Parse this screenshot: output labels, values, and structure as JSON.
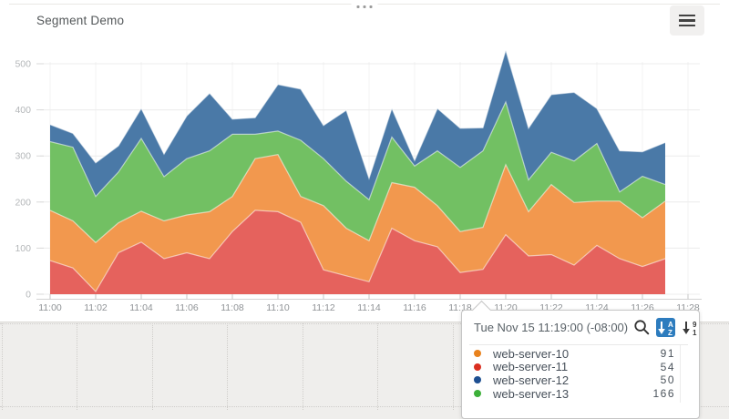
{
  "widget": {
    "title": "Segment Demo"
  },
  "chart_data": {
    "type": "area",
    "stacked": true,
    "title": "Segment Demo",
    "x_start": "11:00",
    "x_step_minutes": 1,
    "x_tick_labels": [
      "11:00",
      "11:02",
      "11:04",
      "11:06",
      "11:08",
      "11:10",
      "11:12",
      "11:14",
      "11:16",
      "11:18",
      "11:20",
      "11:22",
      "11:24",
      "11:26",
      "11:28"
    ],
    "y_ticks": [
      0,
      100,
      200,
      300,
      400,
      500
    ],
    "ylim": [
      0,
      550
    ],
    "grid": true,
    "legend_position": "tooltip",
    "series": [
      {
        "name": "web-server-11",
        "color": "#e5625d",
        "values": [
          73,
          57,
          6,
          90,
          113,
          77,
          90,
          77,
          136,
          182,
          179,
          156,
          53,
          40,
          27,
          143,
          116,
          103,
          47,
          54,
          129,
          83,
          86,
          63,
          106,
          77,
          60,
          77
        ]
      },
      {
        "name": "web-server-10",
        "color": "#f2984e",
        "values": [
          109,
          102,
          106,
          65,
          67,
          82,
          82,
          102,
          76,
          112,
          124,
          56,
          139,
          103,
          89,
          99,
          116,
          89,
          89,
          91,
          152,
          96,
          152,
          136,
          96,
          125,
          106,
          125
        ]
      },
      {
        "name": "web-server-13",
        "color": "#72c063",
        "values": [
          149,
          160,
          100,
          110,
          158,
          96,
          122,
          132,
          135,
          53,
          51,
          122,
          102,
          102,
          89,
          99,
          46,
          119,
          139,
          166,
          136,
          69,
          70,
          90,
          125,
          20,
          90,
          36
        ]
      },
      {
        "name": "web-server-12",
        "color": "#4a79a7",
        "values": [
          37,
          30,
          73,
          57,
          65,
          49,
          93,
          125,
          33,
          36,
          101,
          111,
          72,
          154,
          46,
          62,
          12,
          92,
          85,
          50,
          112,
          112,
          125,
          149,
          76,
          89,
          53,
          91
        ]
      }
    ]
  },
  "tooltip": {
    "timestamp": "Tue Nov 15 11:19:00 (-08:00)",
    "icons": [
      "search-icon",
      "sort-alpha-desc-icon",
      "sort-numeric-desc-icon"
    ],
    "active_sort": "alpha",
    "sort_button_color": "#2d7cbe",
    "rows": [
      {
        "name": "web-server-10",
        "color": "#e8821d",
        "value": "91"
      },
      {
        "name": "web-server-11",
        "color": "#da2f20",
        "value": "54"
      },
      {
        "name": "web-server-12",
        "color": "#1d4f91",
        "value": "50"
      },
      {
        "name": "web-server-13",
        "color": "#3cb039",
        "value": "166"
      }
    ]
  }
}
